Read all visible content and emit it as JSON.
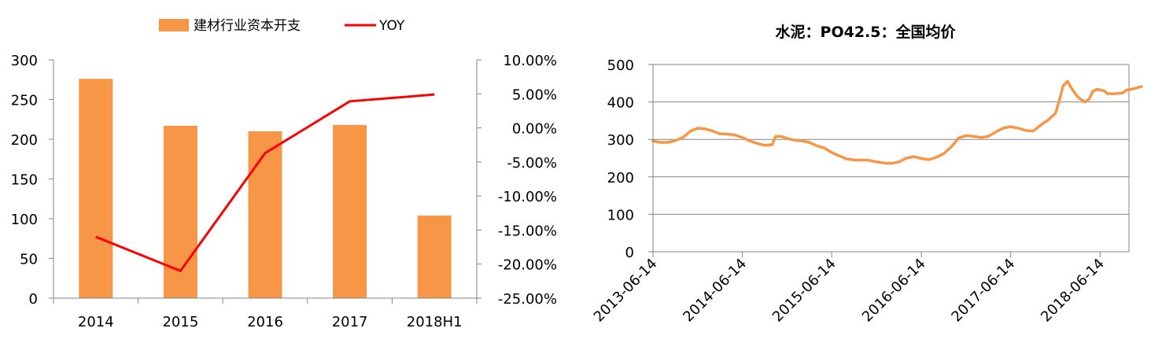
{
  "chart_data": [
    {
      "type": "bar+line",
      "title": "",
      "categories": [
        "2014",
        "2015",
        "2016",
        "2017",
        "2018H1"
      ],
      "series": [
        {
          "name": "建材行业资本开支",
          "type": "bar",
          "axis": "left",
          "color": "#F79646",
          "values": [
            276,
            217,
            210,
            218,
            104
          ]
        },
        {
          "name": "YOY",
          "type": "line",
          "axis": "right",
          "color": "#FF0000",
          "values": [
            -16.0,
            -21.0,
            -3.7,
            3.9,
            4.9
          ]
        }
      ],
      "y_left": {
        "min": 0,
        "max": 300,
        "step": 50,
        "ticks": [
          "0",
          "50",
          "100",
          "150",
          "200",
          "250",
          "300"
        ]
      },
      "y_right": {
        "min": -25,
        "max": 10,
        "step": 5,
        "ticks": [
          "-25.00%",
          "-20.00%",
          "-15.00%",
          "-10.00%",
          "-5.00%",
          "0.00%",
          "5.00%",
          "10.00%"
        ]
      },
      "legend_position": "top",
      "grid": false
    },
    {
      "type": "line",
      "title": "水泥：PO42.5：全国均价",
      "color": "#F79646",
      "x_ticks": [
        "2013-06-14",
        "2014-06-14",
        "2015-06-14",
        "2016-06-14",
        "2017-06-14",
        "2018-06-14"
      ],
      "x_range": [
        "2013-06-14",
        "2018-11-30"
      ],
      "ylim": [
        0,
        500
      ],
      "y_ticks": [
        "0",
        "100",
        "200",
        "300",
        "400",
        "500"
      ],
      "grid": true,
      "points": [
        [
          "2013-06-14",
          296
        ],
        [
          "2013-07-14",
          292
        ],
        [
          "2013-08-14",
          292
        ],
        [
          "2013-09-14",
          297
        ],
        [
          "2013-10-14",
          305
        ],
        [
          "2013-11-14",
          322
        ],
        [
          "2013-12-14",
          330
        ],
        [
          "2014-01-14",
          328
        ],
        [
          "2014-02-14",
          322
        ],
        [
          "2014-03-14",
          315
        ],
        [
          "2014-04-14",
          314
        ],
        [
          "2014-05-14",
          312
        ],
        [
          "2014-06-14",
          305
        ],
        [
          "2014-07-14",
          296
        ],
        [
          "2014-08-14",
          289
        ],
        [
          "2014-09-14",
          284
        ],
        [
          "2014-10-14",
          286
        ],
        [
          "2014-10-28",
          308
        ],
        [
          "2014-11-20",
          308
        ],
        [
          "2014-12-14",
          302
        ],
        [
          "2015-01-14",
          298
        ],
        [
          "2015-02-14",
          296
        ],
        [
          "2015-03-14",
          292
        ],
        [
          "2015-04-14",
          283
        ],
        [
          "2015-05-14",
          277
        ],
        [
          "2015-06-14",
          265
        ],
        [
          "2015-07-14",
          256
        ],
        [
          "2015-08-14",
          248
        ],
        [
          "2015-09-14",
          245
        ],
        [
          "2015-10-14",
          245
        ],
        [
          "2015-11-14",
          244
        ],
        [
          "2015-12-14",
          240
        ],
        [
          "2016-01-14",
          237
        ],
        [
          "2016-02-14",
          236
        ],
        [
          "2016-03-14",
          240
        ],
        [
          "2016-04-14",
          250
        ],
        [
          "2016-05-14",
          254
        ],
        [
          "2016-06-14",
          249
        ],
        [
          "2016-07-14",
          246
        ],
        [
          "2016-08-14",
          252
        ],
        [
          "2016-09-14",
          262
        ],
        [
          "2016-10-14",
          280
        ],
        [
          "2016-11-14",
          304
        ],
        [
          "2016-12-14",
          310
        ],
        [
          "2017-01-14",
          308
        ],
        [
          "2017-02-14",
          305
        ],
        [
          "2017-03-14",
          308
        ],
        [
          "2017-04-14",
          320
        ],
        [
          "2017-05-14",
          330
        ],
        [
          "2017-06-14",
          334
        ],
        [
          "2017-07-14",
          330
        ],
        [
          "2017-08-14",
          324
        ],
        [
          "2017-09-14",
          322
        ],
        [
          "2017-10-14",
          338
        ],
        [
          "2017-11-14",
          352
        ],
        [
          "2017-12-14",
          370
        ],
        [
          "2017-12-28",
          400
        ],
        [
          "2018-01-14",
          443
        ],
        [
          "2018-02-01",
          455
        ],
        [
          "2018-02-14",
          440
        ],
        [
          "2018-03-01",
          425
        ],
        [
          "2018-03-20",
          410
        ],
        [
          "2018-04-14",
          400
        ],
        [
          "2018-05-01",
          408
        ],
        [
          "2018-05-14",
          428
        ],
        [
          "2018-06-01",
          434
        ],
        [
          "2018-06-14",
          432
        ],
        [
          "2018-07-01",
          430
        ],
        [
          "2018-07-14",
          422
        ],
        [
          "2018-08-14",
          422
        ],
        [
          "2018-09-14",
          424
        ],
        [
          "2018-10-01",
          432
        ],
        [
          "2018-10-28",
          435
        ],
        [
          "2018-11-30",
          441
        ]
      ]
    }
  ]
}
